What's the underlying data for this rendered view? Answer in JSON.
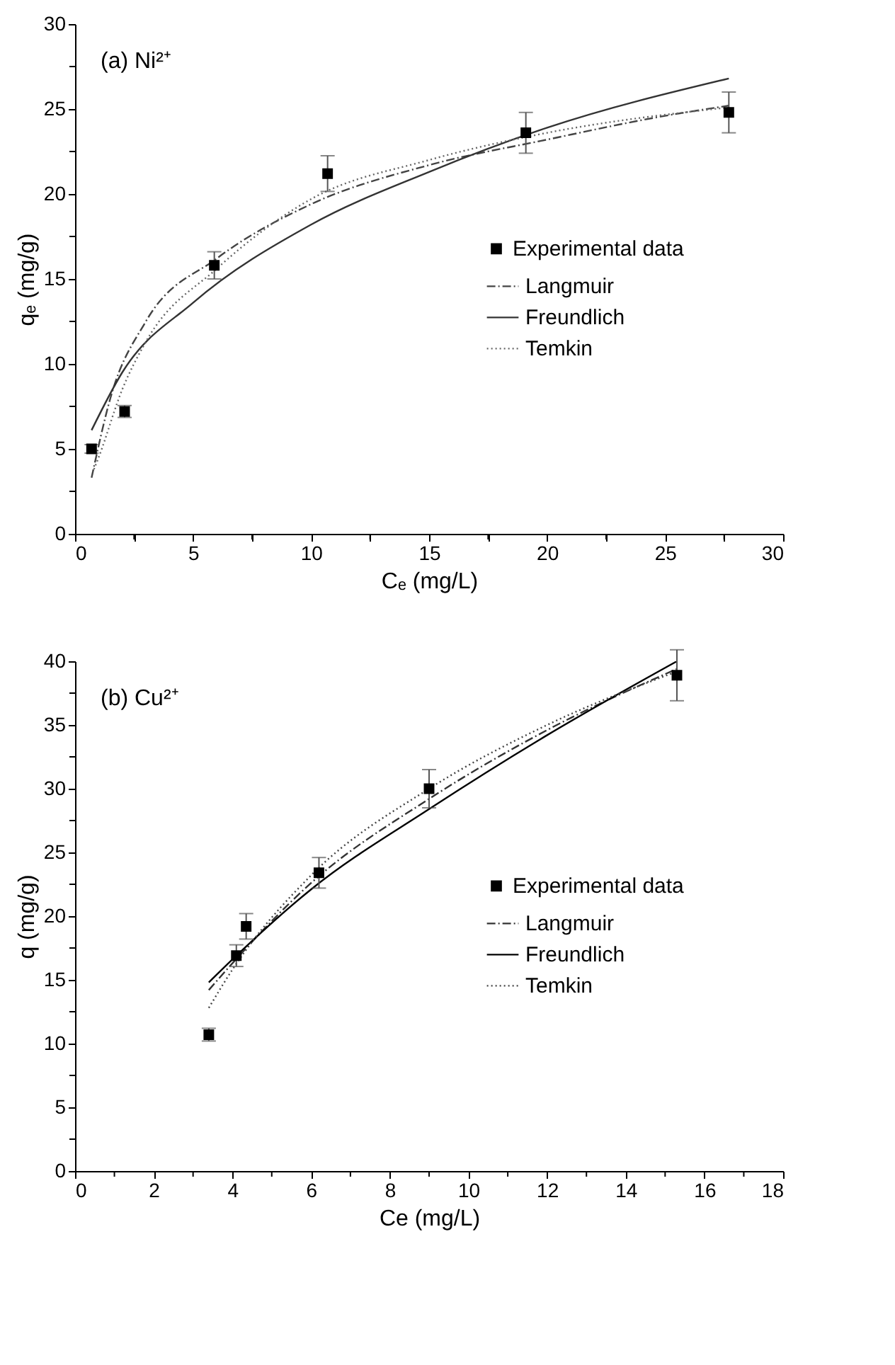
{
  "chart_data": [
    {
      "type": "line",
      "title": "(a) Ni²⁺",
      "xlabel": "Cₑ (mg/L)",
      "ylabel": "qₑ (mg/g)",
      "xlim": [
        0,
        30
      ],
      "ylim": [
        0,
        30
      ],
      "xticks": [
        0,
        {
          "value": 2.5,
          "label": null
        },
        5,
        {
          "value": 7.5,
          "label": null
        },
        10,
        {
          "value": 12.5,
          "label": null
        },
        15,
        {
          "value": 17.5,
          "label": null
        },
        20,
        {
          "value": 22.5,
          "label": null
        },
        25,
        {
          "value": 27.5,
          "label": null
        },
        30
      ],
      "yticks": [
        0,
        {
          "value": 2.5,
          "label": null
        },
        5,
        {
          "value": 7.5,
          "label": null
        },
        10,
        {
          "value": 12.5,
          "label": null
        },
        15,
        {
          "value": 17.5,
          "label": null
        },
        20,
        {
          "value": 22.5,
          "label": null
        },
        25,
        {
          "value": 27.5,
          "label": null
        },
        30
      ],
      "grid": false,
      "legend": "right",
      "series": [
        {
          "name": "Experimental data",
          "type": "scatter",
          "marker": "square",
          "color": "#000000",
          "x": [
            0.7,
            2.1,
            5.9,
            10.7,
            19.1,
            27.7
          ],
          "values": [
            5.0,
            7.2,
            15.8,
            21.2,
            23.6,
            24.8
          ],
          "errors": [
            0.25,
            0.35,
            0.8,
            1.05,
            1.2,
            1.2
          ]
        },
        {
          "name": "Langmuir",
          "line_style": "dashdot",
          "color": "#444444",
          "x": [
            0.7,
            1.5,
            3,
            6,
            10,
            15,
            20,
            25,
            27.7
          ],
          "values": [
            3.3,
            8.0,
            12.5,
            16.2,
            19.4,
            21.7,
            23.2,
            24.6,
            25.2
          ]
        },
        {
          "name": "Freundlich",
          "line_style": "solid",
          "color": "#333333",
          "x": [
            0.7,
            2,
            5,
            10,
            15,
            20,
            27.7
          ],
          "values": [
            6.1,
            9.5,
            13.6,
            18.2,
            21.3,
            23.9,
            26.8
          ]
        },
        {
          "name": "Temkin",
          "line_style": "dotted",
          "color": "#666666",
          "x": [
            0.8,
            1,
            2,
            3,
            6,
            10,
            15,
            20,
            27.7
          ],
          "values": [
            3.8,
            4.5,
            8.5,
            11.3,
            15.6,
            19.7,
            22.0,
            23.6,
            25.1
          ]
        }
      ]
    },
    {
      "type": "line",
      "title": "(b) Cu²⁺",
      "xlabel": "Ce (mg/L)",
      "ylabel": "q (mg/g)",
      "xlim": [
        0,
        18
      ],
      "ylim": [
        0,
        40
      ],
      "xticks": [
        0,
        {
          "value": 1,
          "label": null
        },
        2,
        {
          "value": 3,
          "label": null
        },
        4,
        {
          "value": 5,
          "label": null
        },
        6,
        {
          "value": 7,
          "label": null
        },
        8,
        {
          "value": 9,
          "label": null
        },
        10,
        {
          "value": 11,
          "label": null
        },
        12,
        {
          "value": 13,
          "label": null
        },
        14,
        {
          "value": 15,
          "label": null
        },
        16,
        {
          "value": 17,
          "label": null
        },
        18
      ],
      "yticks": [
        0,
        {
          "value": 2.5,
          "label": null
        },
        5,
        {
          "value": 7.5,
          "label": null
        },
        10,
        {
          "value": 12.5,
          "label": null
        },
        15,
        {
          "value": 17.5,
          "label": null
        },
        20,
        {
          "value": 22.5,
          "label": null
        },
        25,
        {
          "value": 27.5,
          "label": null
        },
        30,
        {
          "value": 32.5,
          "label": null
        },
        35,
        {
          "value": 37.5,
          "label": null
        },
        40
      ],
      "grid": false,
      "legend": "right",
      "series": [
        {
          "name": "Experimental data",
          "type": "scatter",
          "marker": "square",
          "color": "#000000",
          "x": [
            3.4,
            4.1,
            4.35,
            6.2,
            9.0,
            15.3
          ],
          "values": [
            10.7,
            16.9,
            19.2,
            23.4,
            30.0,
            38.9
          ],
          "errors": [
            0.5,
            0.85,
            1.0,
            1.2,
            1.5,
            2.0
          ]
        },
        {
          "name": "Langmuir",
          "line_style": "dashdot",
          "color": "#333333",
          "x": [
            3.4,
            4,
            6,
            9,
            12,
            15.3
          ],
          "values": [
            14.2,
            16.3,
            22.6,
            29.2,
            34.6,
            39.4
          ]
        },
        {
          "name": "Freundlich",
          "line_style": "solid",
          "color": "#000000",
          "x": [
            3.4,
            4,
            6,
            9,
            12,
            15.3
          ],
          "values": [
            14.8,
            16.6,
            22.1,
            28.4,
            34.2,
            40.0
          ]
        },
        {
          "name": "Temkin",
          "line_style": "dotted",
          "color": "#444444",
          "x": [
            3.4,
            4,
            6,
            9,
            12,
            15.3
          ],
          "values": [
            12.8,
            15.8,
            23.2,
            30.0,
            35.0,
            39.2
          ]
        }
      ]
    }
  ]
}
